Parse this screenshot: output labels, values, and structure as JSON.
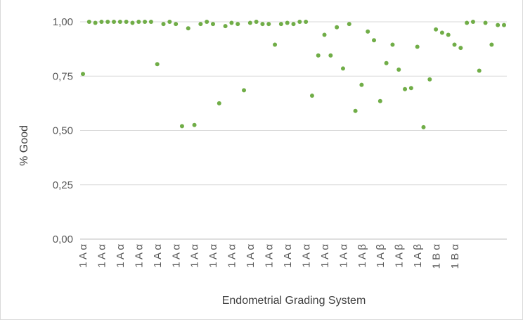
{
  "chart_data": {
    "type": "scatter",
    "title": "",
    "xlabel": "Endometrial Grading System",
    "ylabel": "% Good",
    "ylim": [
      0,
      1
    ],
    "yticks": [
      "0,00",
      "0,25",
      "0,50",
      "0,75",
      "1,00"
    ],
    "y_tick_values": [
      0,
      0.25,
      0.5,
      0.75,
      1.0
    ],
    "grid": true,
    "legend": "none",
    "marker_color": "#70ad47",
    "x_tick_labels": [
      "1 A α",
      "1 A α",
      "1 A α",
      "1 A α",
      "1 A α",
      "1 A α",
      "1 A α",
      "1 A α",
      "1 A α",
      "1 A α",
      "1 A α",
      "1 A α",
      "1 A α",
      "1 A α",
      "1 A α",
      "1 A β",
      "1 A β",
      "1 A β",
      "1 A β",
      "1 B α",
      "1 B α"
    ],
    "series": [
      {
        "values": [
          0.76,
          1.0,
          0.995,
          1.0,
          1.0,
          1.0,
          1.0,
          1.0,
          0.995,
          1.0,
          1.0,
          1.0,
          0.805,
          0.99,
          1.0,
          0.99,
          0.52,
          0.97,
          0.525,
          0.99,
          1.0,
          0.99,
          0.625,
          0.98,
          0.995,
          0.99,
          0.685,
          0.995,
          1.0,
          0.99,
          0.99,
          0.895,
          0.99,
          0.995,
          0.99,
          1.0,
          1.0,
          0.66,
          0.845,
          0.94,
          0.845,
          0.975,
          0.785,
          0.99,
          0.59,
          0.71,
          0.955,
          0.915,
          0.635,
          0.81,
          0.895,
          0.78,
          0.69,
          0.695,
          0.885,
          0.515,
          0.735,
          0.965,
          0.95,
          0.94,
          0.895,
          0.88,
          0.995,
          1.0,
          0.775,
          0.995,
          0.895,
          0.985,
          0.985
        ]
      }
    ]
  }
}
